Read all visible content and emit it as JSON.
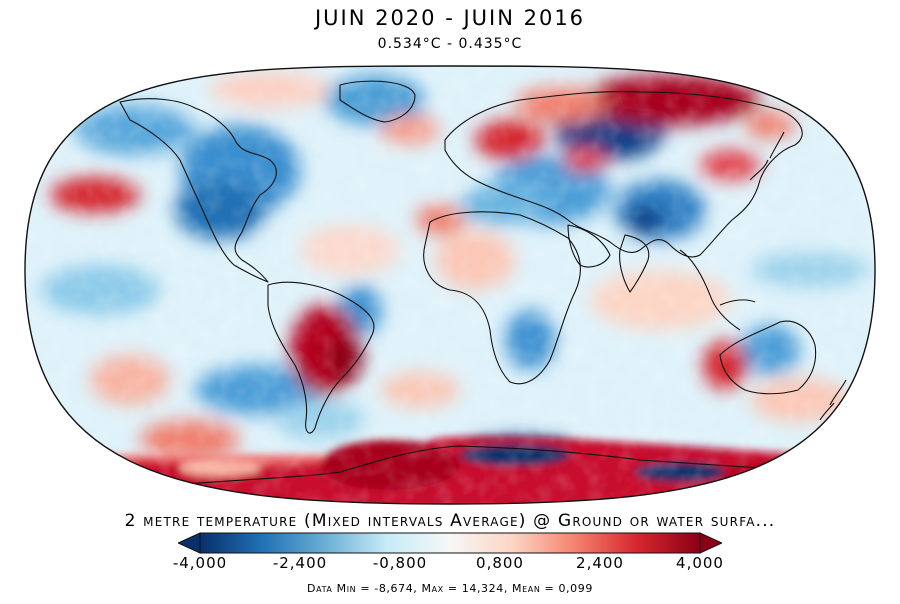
{
  "header": {
    "title": "JUIN 2020 - JUIN 2016",
    "subtitle": "0.534°C - 0.435°C"
  },
  "variable_title": "2 metre temperature (Mixed intervals Average) @ Ground or water surfa...",
  "colorbar": {
    "ticks": [
      "-4,000",
      "-2,400",
      "-0,800",
      "0,800",
      "2,400",
      "4,000"
    ],
    "colors": [
      "#08306b",
      "#2171b5",
      "#6baed6",
      "#c6ecf7",
      "#f7f7f7",
      "#fcd5c5",
      "#f4826e",
      "#d6262e",
      "#8b0015"
    ]
  },
  "stats": "Data Min = -8,674, Max = 14,324, Mean = 0,099"
}
